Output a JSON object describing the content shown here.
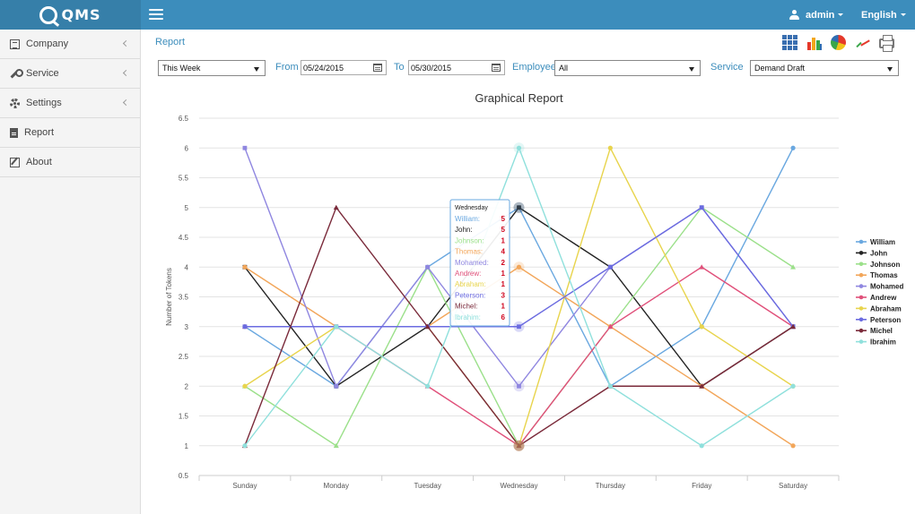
{
  "brand": {
    "name": "QMS"
  },
  "header": {
    "user": "admin",
    "language": "English"
  },
  "sidebar": {
    "items": [
      {
        "label": "Company",
        "icon": "building-icon",
        "has_submenu": true
      },
      {
        "label": "Service",
        "icon": "wrench-icon",
        "has_submenu": true
      },
      {
        "label": "Settings",
        "icon": "gear-icon",
        "has_submenu": true
      },
      {
        "label": "Report",
        "icon": "file-icon",
        "has_submenu": false
      },
      {
        "label": "About",
        "icon": "edit-icon",
        "has_submenu": false
      }
    ]
  },
  "page": {
    "title": "Report"
  },
  "toolbar": {
    "icons": [
      "table-view-icon",
      "bar-chart-icon",
      "pie-chart-icon",
      "line-chart-icon",
      "print-icon"
    ]
  },
  "filters": {
    "period": "This Week",
    "from_label": "From",
    "from_date": "05/24/2015",
    "to_label": "To",
    "to_date": "05/30/2015",
    "employee_label": "Employee",
    "employee": "All",
    "service_label": "Service",
    "service": "Demand Draft"
  },
  "chart_data": {
    "type": "line",
    "title": "Graphical Report",
    "ylabel": "Number of Tokens",
    "xlabel": "",
    "ylim": [
      0.5,
      6.5
    ],
    "yticks": [
      0.5,
      1,
      1.5,
      2,
      2.5,
      3,
      3.5,
      4,
      4.5,
      5,
      5.5,
      6,
      6.5
    ],
    "grid": true,
    "legend": "right",
    "categories": [
      "Sunday",
      "Monday",
      "Tuesday",
      "Wednesday",
      "Thursday",
      "Friday",
      "Saturday"
    ],
    "series": [
      {
        "name": "William",
        "color": "#6aa8e0",
        "values": [
          3,
          2,
          4,
          5,
          2,
          3,
          6
        ]
      },
      {
        "name": "John",
        "color": "#222222",
        "values": [
          4,
          2,
          3,
          5,
          4,
          2,
          3
        ]
      },
      {
        "name": "Johnson",
        "color": "#9be08a",
        "values": [
          2,
          1,
          4,
          1,
          3,
          5,
          4
        ]
      },
      {
        "name": "Thomas",
        "color": "#f2a65a",
        "values": [
          4,
          3,
          3,
          4,
          3,
          2,
          1
        ]
      },
      {
        "name": "Mohamed",
        "color": "#8f86e0",
        "values": [
          6,
          2,
          4,
          2,
          4,
          5,
          3
        ]
      },
      {
        "name": "Andrew",
        "color": "#e0507a",
        "values": [
          3,
          3,
          2,
          1,
          3,
          4,
          3
        ]
      },
      {
        "name": "Abraham",
        "color": "#e8d44d",
        "values": [
          2,
          3,
          3,
          1,
          6,
          3,
          2
        ]
      },
      {
        "name": "Peterson",
        "color": "#6b6be0",
        "values": [
          3,
          3,
          3,
          3,
          4,
          5,
          3
        ]
      },
      {
        "name": "Michel",
        "color": "#7a2a3a",
        "values": [
          1,
          5,
          3,
          1,
          2,
          2,
          3
        ]
      },
      {
        "name": "Ibrahim",
        "color": "#8fe0dc",
        "values": [
          1,
          3,
          2,
          6,
          2,
          1,
          2
        ]
      }
    ],
    "tooltip": {
      "category": "Wednesday",
      "category_index": 3
    }
  }
}
